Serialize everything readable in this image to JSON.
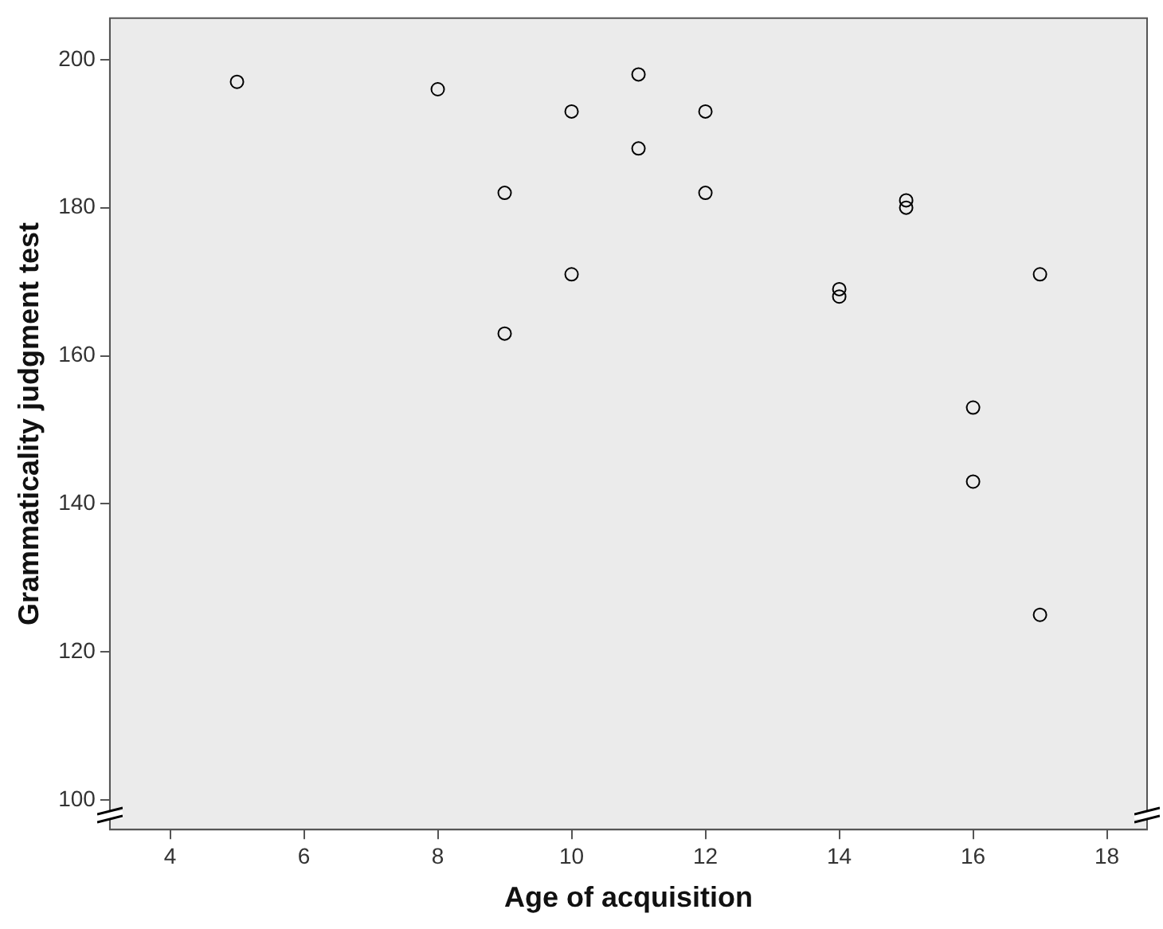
{
  "chart_data": {
    "type": "scatter",
    "xlabel": "Age of acquisition",
    "ylabel": "Grammaticality judgment test",
    "x": [
      5,
      8,
      9,
      9,
      10,
      10,
      11,
      11,
      12,
      12,
      14,
      14,
      15,
      15,
      16,
      16,
      17,
      17
    ],
    "series": [
      {
        "color": "#000000",
        "values": [
          197,
          196,
          182,
          163,
          193,
          171,
          198,
          188,
          193,
          182,
          169,
          168,
          181,
          180,
          153,
          143,
          171,
          125
        ]
      }
    ],
    "xlim": [
      3.1,
      18.6
    ],
    "ylim": [
      96,
      205.6
    ],
    "xticks": [
      4,
      6,
      8,
      10,
      12,
      14,
      16,
      18
    ],
    "yticks": [
      100,
      120,
      140,
      160,
      180,
      200
    ],
    "grid": false,
    "legend": false,
    "marker": "circle"
  }
}
